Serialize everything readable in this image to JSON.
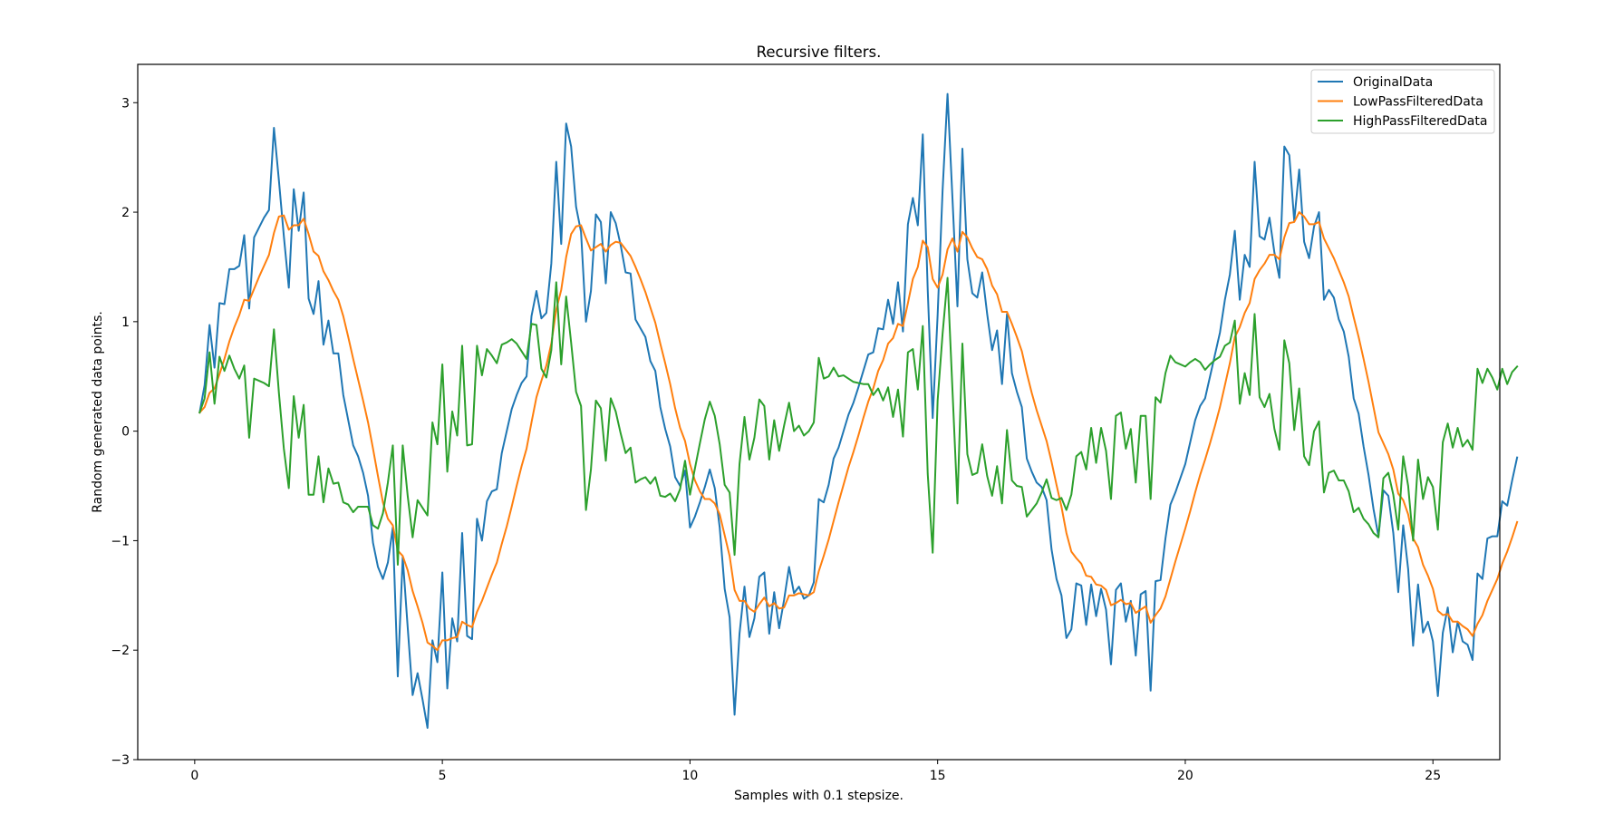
{
  "chart_data": {
    "type": "line",
    "title": "Recursive filters.",
    "xlabel": "Samples with 0.1 stepsize.",
    "ylabel": "Random generated data points.",
    "xlim": [
      -1.15,
      26.35
    ],
    "ylim": [
      -3,
      3.35
    ],
    "xticks": [
      0,
      5,
      10,
      15,
      20,
      25
    ],
    "yticks": [
      -3,
      -2,
      -1,
      0,
      1,
      2,
      3
    ],
    "legend": "top-right",
    "x_start": 0.1,
    "x_step": 0.1,
    "series": [
      {
        "name": "OriginalData",
        "color": "#1f77b4",
        "values": [
          0.17,
          0.42,
          0.97,
          0.58,
          1.17,
          1.16,
          1.48,
          1.48,
          1.51,
          1.79,
          1.12,
          1.77,
          1.86,
          1.95,
          2.02,
          2.77,
          2.29,
          1.78,
          1.31,
          2.21,
          1.83,
          2.18,
          1.21,
          1.07,
          1.37,
          0.79,
          1.01,
          0.71,
          0.71,
          0.33,
          0.1,
          -0.13,
          -0.23,
          -0.38,
          -0.59,
          -1.02,
          -1.24,
          -1.35,
          -1.2,
          -0.88,
          -2.24,
          -1.15,
          -1.79,
          -2.41,
          -2.21,
          -2.45,
          -2.71,
          -1.91,
          -2.11,
          -1.29,
          -2.35,
          -1.71,
          -1.92,
          -0.93,
          -1.87,
          -1.9,
          -0.8,
          -1.0,
          -0.64,
          -0.55,
          -0.53,
          -0.2,
          0.0,
          0.2,
          0.33,
          0.44,
          0.5,
          1.05,
          1.28,
          1.03,
          1.08,
          1.53,
          2.46,
          1.71,
          2.81,
          2.6,
          2.05,
          1.82,
          1.0,
          1.28,
          1.98,
          1.91,
          1.35,
          2.0,
          1.9,
          1.7,
          1.45,
          1.44,
          1.02,
          0.94,
          0.86,
          0.64,
          0.55,
          0.22,
          0.02,
          -0.14,
          -0.42,
          -0.5,
          -0.36,
          -0.88,
          -0.78,
          -0.65,
          -0.51,
          -0.35,
          -0.52,
          -0.88,
          -1.44,
          -1.7,
          -2.59,
          -1.85,
          -1.42,
          -1.88,
          -1.71,
          -1.33,
          -1.29,
          -1.85,
          -1.47,
          -1.8,
          -1.54,
          -1.24,
          -1.48,
          -1.42,
          -1.53,
          -1.5,
          -1.38,
          -0.62,
          -0.65,
          -0.49,
          -0.25,
          -0.15,
          0.0,
          0.15,
          0.26,
          0.4,
          0.55,
          0.7,
          0.72,
          0.94,
          0.93,
          1.2,
          0.98,
          1.36,
          0.91,
          1.89,
          2.13,
          1.88,
          2.71,
          1.29,
          0.12,
          1.06,
          2.2,
          3.08,
          2.12,
          1.14,
          2.58,
          1.57,
          1.26,
          1.22,
          1.45,
          1.07,
          0.74,
          0.92,
          0.43,
          1.07,
          0.53,
          0.36,
          0.22,
          -0.25,
          -0.37,
          -0.47,
          -0.51,
          -0.63,
          -1.08,
          -1.35,
          -1.5,
          -1.89,
          -1.81,
          -1.39,
          -1.41,
          -1.77,
          -1.4,
          -1.69,
          -1.44,
          -1.63,
          -2.13,
          -1.45,
          -1.39,
          -1.74,
          -1.55,
          -2.05,
          -1.49,
          -1.46,
          -2.37,
          -1.37,
          -1.36,
          -0.98,
          -0.67,
          -0.56,
          -0.43,
          -0.3,
          -0.1,
          0.1,
          0.23,
          0.3,
          0.5,
          0.7,
          0.9,
          1.2,
          1.43,
          1.83,
          1.2,
          1.61,
          1.5,
          2.46,
          1.78,
          1.75,
          1.95,
          1.63,
          1.4,
          2.6,
          2.52,
          1.92,
          2.39,
          1.73,
          1.58,
          1.87,
          2.0,
          1.2,
          1.29,
          1.22,
          1.02,
          0.91,
          0.68,
          0.3,
          0.16,
          -0.14,
          -0.4,
          -0.71,
          -0.96,
          -0.54,
          -0.59,
          -0.93,
          -1.47,
          -0.86,
          -1.26,
          -1.96,
          -1.4,
          -1.84,
          -1.74,
          -1.92,
          -2.42,
          -1.84,
          -1.61,
          -2.02,
          -1.74,
          -1.92,
          -1.95,
          -2.09,
          -1.3,
          -1.35,
          -0.98,
          -0.96,
          -0.96,
          -0.64,
          -0.68,
          -0.45,
          -0.24
        ]
      },
      {
        "name": "LowPassFilteredData",
        "color": "#ff7f0e",
        "values": [
          0.17,
          0.22,
          0.35,
          0.39,
          0.52,
          0.66,
          0.82,
          0.95,
          1.06,
          1.2,
          1.19,
          1.3,
          1.41,
          1.51,
          1.61,
          1.81,
          1.96,
          1.97,
          1.84,
          1.88,
          1.88,
          1.94,
          1.8,
          1.64,
          1.6,
          1.46,
          1.38,
          1.28,
          1.2,
          1.05,
          0.86,
          0.66,
          0.47,
          0.28,
          0.08,
          -0.16,
          -0.41,
          -0.65,
          -0.8,
          -0.86,
          -1.09,
          -1.14,
          -1.27,
          -1.46,
          -1.6,
          -1.75,
          -1.93,
          -1.96,
          -2.0,
          -1.91,
          -1.91,
          -1.89,
          -1.88,
          -1.74,
          -1.77,
          -1.79,
          -1.65,
          -1.55,
          -1.43,
          -1.31,
          -1.2,
          -1.03,
          -0.87,
          -0.69,
          -0.5,
          -0.32,
          -0.16,
          0.08,
          0.31,
          0.46,
          0.6,
          0.8,
          1.11,
          1.29,
          1.59,
          1.8,
          1.87,
          1.88,
          1.76,
          1.65,
          1.68,
          1.71,
          1.64,
          1.7,
          1.73,
          1.72,
          1.66,
          1.6,
          1.5,
          1.39,
          1.27,
          1.13,
          0.99,
          0.8,
          0.62,
          0.43,
          0.21,
          0.03,
          -0.09,
          -0.3,
          -0.45,
          -0.55,
          -0.62,
          -0.62,
          -0.66,
          -0.76,
          -0.95,
          -1.14,
          -1.45,
          -1.55,
          -1.55,
          -1.62,
          -1.65,
          -1.58,
          -1.52,
          -1.6,
          -1.57,
          -1.62,
          -1.61,
          -1.5,
          -1.5,
          -1.48,
          -1.49,
          -1.5,
          -1.47,
          -1.28,
          -1.14,
          -0.99,
          -0.82,
          -0.65,
          -0.49,
          -0.33,
          -0.19,
          -0.04,
          0.12,
          0.27,
          0.39,
          0.55,
          0.65,
          0.8,
          0.85,
          0.98,
          0.96,
          1.17,
          1.39,
          1.5,
          1.74,
          1.68,
          1.39,
          1.31,
          1.43,
          1.66,
          1.76,
          1.64,
          1.82,
          1.77,
          1.67,
          1.59,
          1.57,
          1.48,
          1.33,
          1.25,
          1.09,
          1.09,
          0.98,
          0.86,
          0.73,
          0.53,
          0.35,
          0.19,
          0.05,
          -0.09,
          -0.28,
          -0.49,
          -0.69,
          -0.93,
          -1.1,
          -1.16,
          -1.21,
          -1.32,
          -1.33,
          -1.4,
          -1.41,
          -1.45,
          -1.59,
          -1.57,
          -1.54,
          -1.58,
          -1.57,
          -1.66,
          -1.63,
          -1.6,
          -1.75,
          -1.68,
          -1.62,
          -1.51,
          -1.35,
          -1.19,
          -1.04,
          -0.89,
          -0.73,
          -0.56,
          -0.4,
          -0.26,
          -0.11,
          0.05,
          0.22,
          0.42,
          0.62,
          0.86,
          0.95,
          1.08,
          1.17,
          1.39,
          1.47,
          1.53,
          1.61,
          1.61,
          1.57,
          1.77,
          1.9,
          1.91,
          2.0,
          1.96,
          1.89,
          1.89,
          1.91,
          1.76,
          1.67,
          1.58,
          1.47,
          1.36,
          1.23,
          1.04,
          0.86,
          0.66,
          0.45,
          0.22,
          -0.01,
          -0.11,
          -0.21,
          -0.35,
          -0.57,
          -0.63,
          -0.76,
          -0.98,
          -1.06,
          -1.22,
          -1.32,
          -1.44,
          -1.64,
          -1.68,
          -1.67,
          -1.74,
          -1.74,
          -1.78,
          -1.81,
          -1.87,
          -1.76,
          -1.68,
          -1.55,
          -1.45,
          -1.35,
          -1.21,
          -1.1,
          -0.97,
          -0.83
        ]
      },
      {
        "name": "HighPassFilteredData",
        "color": "#2ca02c",
        "values": [
          0.17,
          0.3,
          0.72,
          0.25,
          0.68,
          0.55,
          0.69,
          0.57,
          0.48,
          0.6,
          -0.06,
          0.48,
          0.46,
          0.44,
          0.41,
          0.93,
          0.35,
          -0.16,
          -0.52,
          0.32,
          -0.06,
          0.24,
          -0.58,
          -0.58,
          -0.23,
          -0.65,
          -0.34,
          -0.48,
          -0.47,
          -0.65,
          -0.67,
          -0.74,
          -0.69,
          -0.69,
          -0.69,
          -0.86,
          -0.89,
          -0.75,
          -0.47,
          -0.13,
          -1.22,
          -0.13,
          -0.59,
          -0.97,
          -0.63,
          -0.7,
          -0.77,
          0.08,
          -0.12,
          0.61,
          -0.37,
          0.18,
          -0.04,
          0.78,
          -0.13,
          -0.12,
          0.78,
          0.51,
          0.75,
          0.69,
          0.62,
          0.79,
          0.81,
          0.84,
          0.8,
          0.73,
          0.66,
          0.98,
          0.97,
          0.57,
          0.49,
          0.74,
          1.36,
          0.61,
          1.23,
          0.81,
          0.36,
          0.23,
          -0.72,
          -0.35,
          0.28,
          0.21,
          -0.27,
          0.3,
          0.18,
          -0.02,
          -0.2,
          -0.15,
          -0.47,
          -0.44,
          -0.42,
          -0.48,
          -0.42,
          -0.59,
          -0.6,
          -0.57,
          -0.64,
          -0.53,
          -0.27,
          -0.58,
          -0.34,
          -0.11,
          0.11,
          0.27,
          0.14,
          -0.12,
          -0.49,
          -0.56,
          -1.13,
          -0.3,
          0.13,
          -0.26,
          -0.06,
          0.29,
          0.23,
          -0.26,
          0.1,
          -0.18,
          0.05,
          0.26,
          0.0,
          0.05,
          -0.04,
          0.0,
          0.08,
          0.67,
          0.48,
          0.5,
          0.58,
          0.5,
          0.51,
          0.48,
          0.45,
          0.44,
          0.43,
          0.43,
          0.33,
          0.39,
          0.28,
          0.4,
          0.13,
          0.38,
          -0.05,
          0.72,
          0.75,
          0.38,
          0.96,
          -0.39,
          -1.11,
          0.28,
          0.89,
          1.4,
          0.37,
          -0.66,
          0.8,
          -0.21,
          -0.4,
          -0.38,
          -0.12,
          -0.41,
          -0.59,
          -0.32,
          -0.66,
          0.01,
          -0.45,
          -0.5,
          -0.51,
          -0.78,
          -0.72,
          -0.66,
          -0.56,
          -0.44,
          -0.61,
          -0.63,
          -0.61,
          -0.72,
          -0.58,
          -0.23,
          -0.19,
          -0.35,
          0.03,
          -0.29,
          0.03,
          -0.18,
          -0.62,
          0.14,
          0.17,
          -0.16,
          0.02,
          -0.47,
          0.14,
          0.14,
          -0.62,
          0.31,
          0.26,
          0.53,
          0.69,
          0.63,
          0.61,
          0.59,
          0.63,
          0.66,
          0.63,
          0.56,
          0.61,
          0.65,
          0.68,
          0.78,
          0.81,
          1.01,
          0.25,
          0.53,
          0.33,
          1.07,
          0.31,
          0.22,
          0.34,
          0.02,
          -0.17,
          0.83,
          0.62,
          0.01,
          0.39,
          -0.23,
          -0.31,
          0.0,
          0.09,
          -0.56,
          -0.38,
          -0.36,
          -0.45,
          -0.45,
          -0.55,
          -0.74,
          -0.7,
          -0.8,
          -0.85,
          -0.93,
          -0.97,
          -0.43,
          -0.38,
          -0.58,
          -0.9,
          -0.23,
          -0.5,
          -1.0,
          -0.26,
          -0.62,
          -0.42,
          -0.51,
          -0.9,
          -0.1,
          0.07,
          -0.15,
          0.03,
          -0.14,
          -0.08,
          -0.17,
          0.57,
          0.44,
          0.57,
          0.49,
          0.38,
          0.57,
          0.43,
          0.54,
          0.59
        ]
      }
    ]
  }
}
